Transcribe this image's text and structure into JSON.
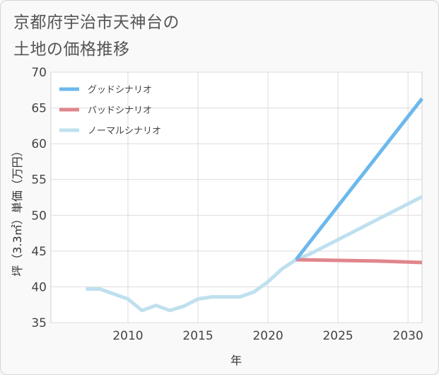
{
  "title_line1": "京都府宇治市天神台の",
  "title_line2": "土地の価格推移",
  "chart_data": {
    "type": "line",
    "xlabel": "年",
    "ylabel": "坪（3.3㎡）単価（万円）",
    "xlim": [
      2004.5,
      2031
    ],
    "ylim": [
      35,
      70
    ],
    "x_ticks": [
      2010,
      2015,
      2020,
      2025,
      2030
    ],
    "y_ticks": [
      35,
      40,
      45,
      50,
      55,
      60,
      65,
      70
    ],
    "grid": true,
    "legend_position": "top-left",
    "series": [
      {
        "name": "グッドシナリオ",
        "color": "#6cb8ec",
        "x": [
          2022,
          2031
        ],
        "y": [
          43.8,
          66.3
        ]
      },
      {
        "name": "バッドシナリオ",
        "color": "#e0868d",
        "x": [
          2022,
          2025,
          2028,
          2031
        ],
        "y": [
          43.8,
          43.7,
          43.6,
          43.4
        ]
      },
      {
        "name": "ノーマルシナリオ",
        "color": "#bfe0ee",
        "x": [
          2007,
          2008,
          2009,
          2010,
          2011,
          2012,
          2013,
          2014,
          2015,
          2016,
          2017,
          2018,
          2019,
          2020,
          2021,
          2022,
          2023,
          2024,
          2025,
          2026,
          2027,
          2028,
          2029,
          2030,
          2031
        ],
        "y": [
          39.7,
          39.7,
          39.0,
          38.3,
          36.7,
          37.4,
          36.7,
          37.3,
          38.3,
          38.6,
          38.6,
          38.6,
          39.3,
          40.7,
          42.5,
          43.8,
          44.6,
          45.6,
          46.6,
          47.6,
          48.6,
          49.6,
          50.6,
          51.6,
          52.6
        ]
      }
    ]
  }
}
